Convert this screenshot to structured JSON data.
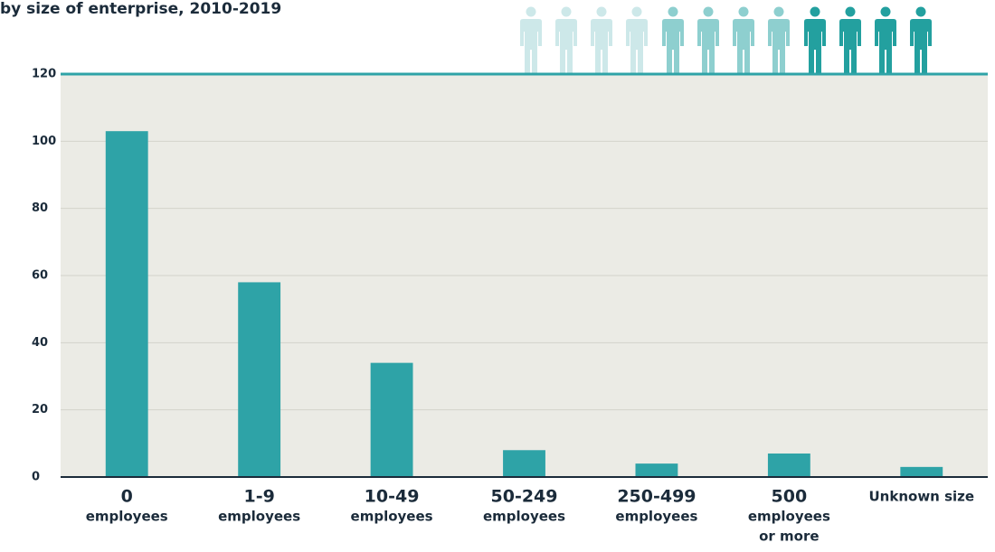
{
  "chart_data": {
    "type": "bar",
    "title": "by size of enterprise, 2010-2019",
    "categories": [
      [
        "0",
        "employees"
      ],
      [
        "1-9",
        "employees"
      ],
      [
        "10-49",
        "employees"
      ],
      [
        "50-249",
        "employees"
      ],
      [
        "250-499",
        "employees"
      ],
      [
        "500",
        "employees",
        "or more"
      ],
      [
        "Unknown size"
      ]
    ],
    "values": [
      103,
      58,
      34,
      8,
      4,
      7,
      3
    ],
    "color": "#2ea3a7",
    "ylim": [
      0,
      120
    ],
    "yticks": [
      0,
      20,
      40,
      60,
      80,
      100,
      120
    ],
    "grid": true
  }
}
